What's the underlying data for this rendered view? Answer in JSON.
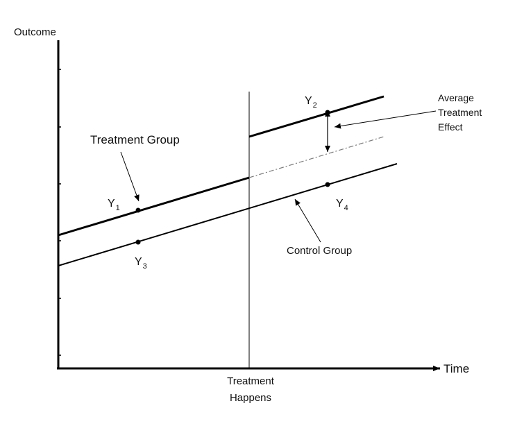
{
  "axes": {
    "y_label": "Outcome",
    "x_label": "Time",
    "x_marker_line1": "Treatment",
    "x_marker_line2": "Happens"
  },
  "groups": {
    "treatment_label": "Treatment Group",
    "control_label": "Control Group"
  },
  "effect": {
    "line1": "Average",
    "line2": "Treatment",
    "line3": "Effect"
  },
  "points": [
    {
      "letter": "Y",
      "sub": "1"
    },
    {
      "letter": "Y",
      "sub": "2"
    },
    {
      "letter": "Y",
      "sub": "3"
    },
    {
      "letter": "Y",
      "sub": "4"
    }
  ],
  "colors": {
    "ink": "#000000",
    "counterfactual": "#7a7a7a"
  }
}
